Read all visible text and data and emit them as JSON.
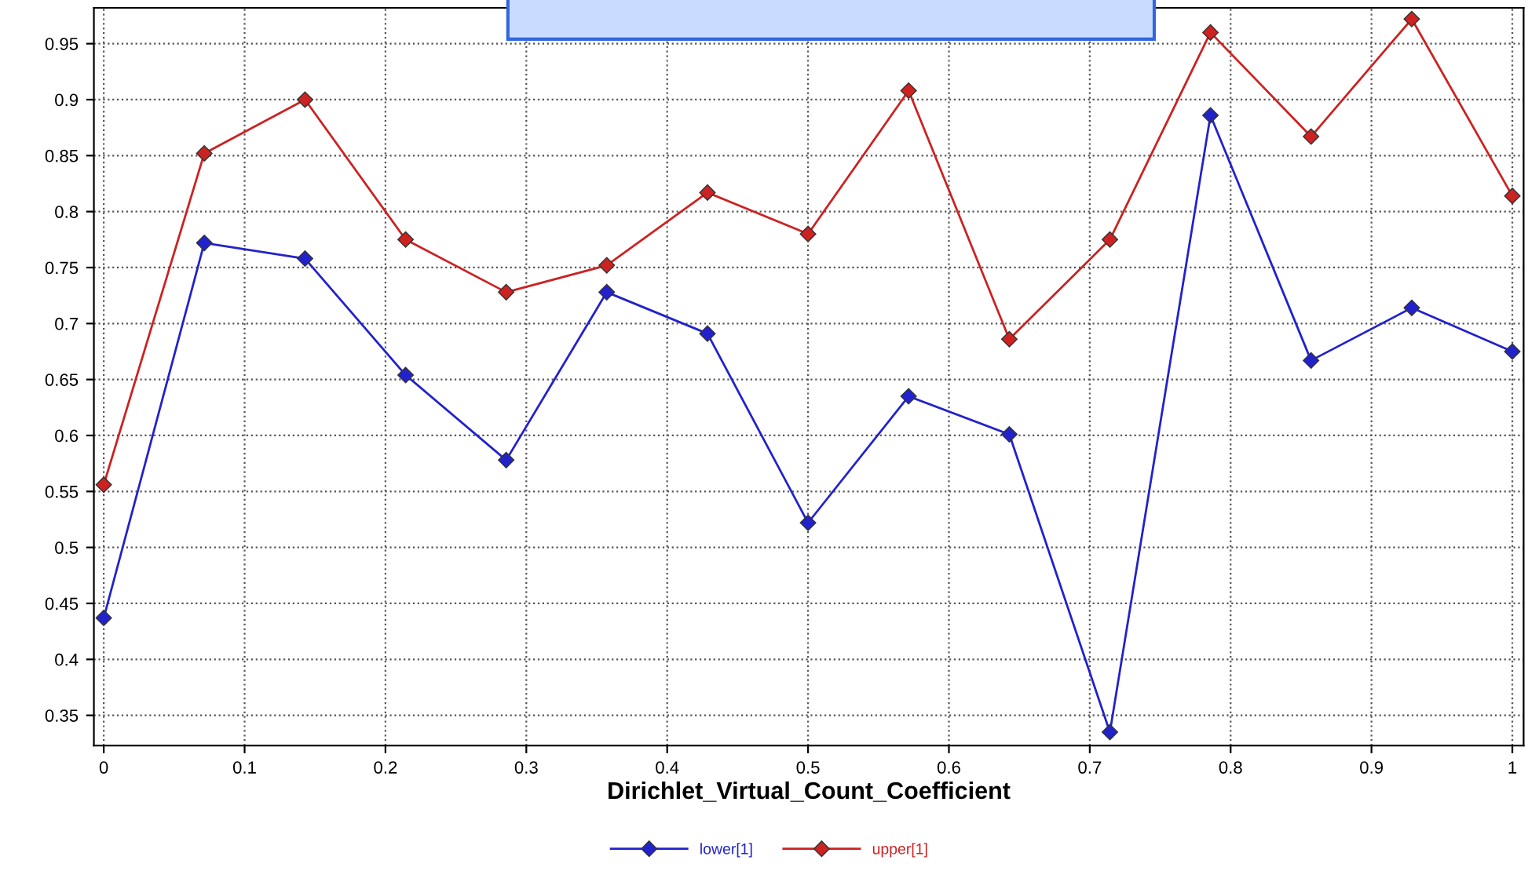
{
  "chart_data": {
    "type": "line",
    "xlabel": "Dirichlet_Virtual_Count_Coefficient",
    "x": [
      0,
      0.0714,
      0.1429,
      0.2143,
      0.2857,
      0.3571,
      0.4286,
      0.5,
      0.5714,
      0.6429,
      0.7143,
      0.7857,
      0.8571,
      0.9286,
      1
    ],
    "series": [
      {
        "name": "lower[1]",
        "color": "#2222cc",
        "values": [
          0.437,
          0.772,
          0.758,
          0.654,
          0.578,
          0.728,
          0.691,
          0.522,
          0.635,
          0.601,
          0.335,
          0.886,
          0.667,
          0.714,
          0.675
        ]
      },
      {
        "name": "upper[1]",
        "color": "#cc2222",
        "values": [
          0.556,
          0.852,
          0.9,
          0.775,
          0.728,
          0.752,
          0.817,
          0.78,
          0.908,
          0.686,
          0.775,
          0.96,
          0.867,
          0.972,
          0.814
        ]
      }
    ],
    "xlim": [
      -0.007,
      1.008
    ],
    "ylim": [
      0.323,
      0.982
    ],
    "xticks": [
      0,
      0.1,
      0.2,
      0.3,
      0.4,
      0.5,
      0.6,
      0.7,
      0.8,
      0.9,
      1
    ],
    "yticks": [
      0.35,
      0.4,
      0.45,
      0.5,
      0.55,
      0.6,
      0.65,
      0.7,
      0.75,
      0.8,
      0.85,
      0.9,
      0.95
    ],
    "grid": true,
    "legend": "bottom",
    "marker": "diamond",
    "line_style": "solid"
  }
}
